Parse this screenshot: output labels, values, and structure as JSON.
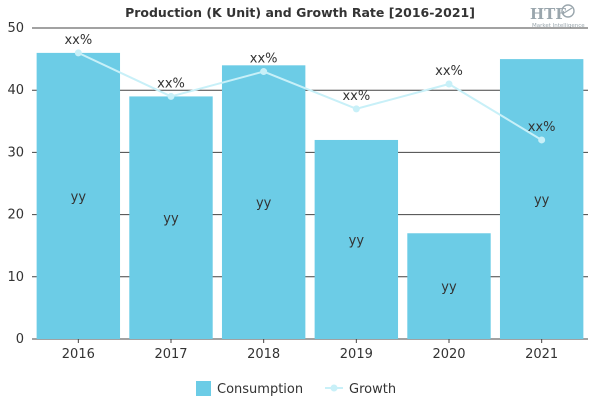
{
  "chart_data": {
    "type": "bar",
    "title": "Production (K Unit) and Growth Rate [2016-2021]",
    "categories": [
      "2016",
      "2017",
      "2018",
      "2019",
      "2020",
      "2021"
    ],
    "series": [
      {
        "name": "Consumption",
        "type": "bar",
        "values": [
          46,
          39,
          44,
          32,
          17,
          45
        ],
        "data_labels": [
          "yy",
          "yy",
          "yy",
          "yy",
          "yy",
          "yy"
        ]
      },
      {
        "name": "Growth",
        "type": "line",
        "values": [
          46,
          39,
          43,
          37,
          41,
          32
        ],
        "data_labels": [
          "xx%",
          "xx%",
          "xx%",
          "xx%",
          "xx%",
          "xx%"
        ]
      }
    ],
    "y_ticks": [
      "0",
      "10",
      "20",
      "30",
      "40",
      "50"
    ],
    "ylim": [
      0,
      50
    ],
    "grid": true,
    "legend_position": "bottom",
    "colors": {
      "bar": "#6ccce6",
      "line": "#c8f0f8",
      "grid": "#444444"
    }
  },
  "watermark": {
    "main": "HTF",
    "sub": "Market Intelligence"
  }
}
